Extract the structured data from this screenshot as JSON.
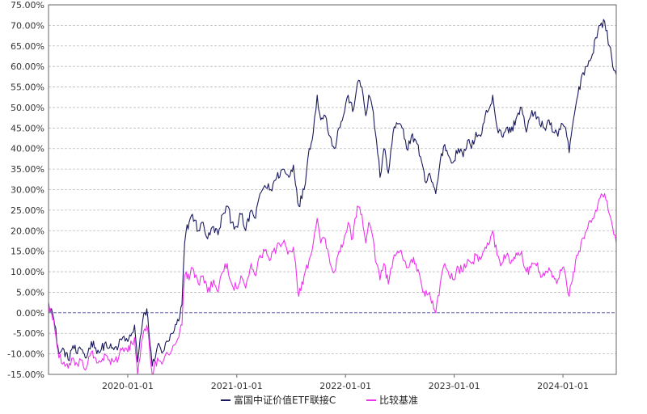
{
  "chart_data": {
    "type": "line",
    "title": "",
    "xlabel": "",
    "ylabel": "",
    "ylim": [
      -15,
      75
    ],
    "xlim": [
      "2019-04-10",
      "2024-06-28"
    ],
    "yticks": [
      -15,
      -10,
      -5,
      0,
      5,
      10,
      15,
      20,
      25,
      30,
      35,
      40,
      45,
      50,
      55,
      60,
      65,
      70,
      75
    ],
    "ytick_labels": [
      "-15.00%",
      "-10.00%",
      "-5.00%",
      "0.00%",
      "5.00%",
      "10.00%",
      "15.00%",
      "20.00%",
      "25.00%",
      "30.00%",
      "35.00%",
      "40.00%",
      "45.00%",
      "50.00%",
      "55.00%",
      "60.00%",
      "65.00%",
      "70.00%",
      "75.00%"
    ],
    "xticks": [
      "2020-01-01",
      "2021-01-01",
      "2022-01-01",
      "2023-01-01",
      "2024-01-01"
    ],
    "xtick_labels": [
      "2020-01-01",
      "2021-01-01",
      "2022-01-01",
      "2023-01-01",
      "2024-01-01"
    ],
    "grid": true,
    "legend_position": "bottom-center",
    "series": [
      {
        "name": "富国中证价值ETF联接C",
        "color": "#1a1a5e",
        "points": [
          [
            "2019-04-10",
            2.5
          ],
          [
            "2019-04-20",
            1.0
          ],
          [
            "2019-05-01",
            -3.0
          ],
          [
            "2019-05-15",
            -10.0
          ],
          [
            "2019-06-01",
            -9.0
          ],
          [
            "2019-06-15",
            -11.5
          ],
          [
            "2019-07-01",
            -8.0
          ],
          [
            "2019-07-15",
            -10.0
          ],
          [
            "2019-08-01",
            -9.0
          ],
          [
            "2019-08-15",
            -11.0
          ],
          [
            "2019-09-01",
            -7.0
          ],
          [
            "2019-09-15",
            -8.5
          ],
          [
            "2019-10-01",
            -9.5
          ],
          [
            "2019-10-15",
            -7.5
          ],
          [
            "2019-11-01",
            -8.5
          ],
          [
            "2019-11-15",
            -9.0
          ],
          [
            "2019-12-01",
            -8.0
          ],
          [
            "2019-12-15",
            -6.0
          ],
          [
            "2020-01-01",
            -7.0
          ],
          [
            "2020-01-15",
            -5.0
          ],
          [
            "2020-01-24",
            -3.0
          ],
          [
            "2020-02-03",
            -12.0
          ],
          [
            "2020-02-20",
            -2.0
          ],
          [
            "2020-03-05",
            1.0
          ],
          [
            "2020-03-23",
            -13.0
          ],
          [
            "2020-04-10",
            -8.0
          ],
          [
            "2020-04-28",
            -9.5
          ],
          [
            "2020-05-15",
            -7.0
          ],
          [
            "2020-06-01",
            -5.0
          ],
          [
            "2020-06-20",
            -2.0
          ],
          [
            "2020-07-01",
            2.0
          ],
          [
            "2020-07-06",
            11.0
          ],
          [
            "2020-07-10",
            17.0
          ],
          [
            "2020-07-15",
            20.0
          ],
          [
            "2020-07-25",
            22.0
          ],
          [
            "2020-08-05",
            24.0
          ],
          [
            "2020-08-25",
            20.0
          ],
          [
            "2020-09-10",
            22.0
          ],
          [
            "2020-09-25",
            18.0
          ],
          [
            "2020-10-15",
            21.0
          ],
          [
            "2020-10-30",
            19.0
          ],
          [
            "2020-11-15",
            24.0
          ],
          [
            "2020-11-30",
            26.0
          ],
          [
            "2020-12-15",
            22.0
          ],
          [
            "2020-12-31",
            21.0
          ],
          [
            "2021-01-15",
            24.0
          ],
          [
            "2021-01-31",
            20.0
          ],
          [
            "2021-02-18",
            25.0
          ],
          [
            "2021-03-05",
            23.0
          ],
          [
            "2021-03-20",
            29.0
          ],
          [
            "2021-04-05",
            31.0
          ],
          [
            "2021-04-25",
            30.0
          ],
          [
            "2021-05-15",
            33.0
          ],
          [
            "2021-06-05",
            35.0
          ],
          [
            "2021-06-25",
            33.0
          ],
          [
            "2021-07-10",
            36.0
          ],
          [
            "2021-07-28",
            26.0
          ],
          [
            "2021-08-15",
            30.0
          ],
          [
            "2021-09-01",
            40.0
          ],
          [
            "2021-09-15",
            44.0
          ],
          [
            "2021-09-28",
            53.0
          ],
          [
            "2021-10-10",
            47.0
          ],
          [
            "2021-10-25",
            48.0
          ],
          [
            "2021-11-10",
            43.0
          ],
          [
            "2021-11-25",
            40.0
          ],
          [
            "2021-12-10",
            45.0
          ],
          [
            "2021-12-25",
            48.0
          ],
          [
            "2022-01-10",
            53.0
          ],
          [
            "2022-01-25",
            49.0
          ],
          [
            "2022-02-10",
            56.0
          ],
          [
            "2022-02-25",
            55.0
          ],
          [
            "2022-03-10",
            48.0
          ],
          [
            "2022-03-20",
            53.0
          ],
          [
            "2022-04-01",
            50.0
          ],
          [
            "2022-04-15",
            42.0
          ],
          [
            "2022-04-27",
            33.0
          ],
          [
            "2022-05-10",
            40.0
          ],
          [
            "2022-05-25",
            34.0
          ],
          [
            "2022-06-10",
            44.0
          ],
          [
            "2022-06-25",
            46.0
          ],
          [
            "2022-07-10",
            45.0
          ],
          [
            "2022-07-25",
            40.0
          ],
          [
            "2022-08-10",
            43.0
          ],
          [
            "2022-08-25",
            42.0
          ],
          [
            "2022-09-10",
            38.0
          ],
          [
            "2022-09-25",
            32.0
          ],
          [
            "2022-10-10",
            34.0
          ],
          [
            "2022-10-31",
            29.0
          ],
          [
            "2022-11-15",
            37.0
          ],
          [
            "2022-11-30",
            41.0
          ],
          [
            "2022-12-15",
            38.0
          ],
          [
            "2022-12-31",
            37.0
          ],
          [
            "2023-01-15",
            40.0
          ],
          [
            "2023-01-31",
            38.0
          ],
          [
            "2023-02-15",
            42.0
          ],
          [
            "2023-02-28",
            40.0
          ],
          [
            "2023-03-15",
            44.0
          ],
          [
            "2023-03-31",
            43.0
          ],
          [
            "2023-04-15",
            48.0
          ],
          [
            "2023-04-30",
            50.0
          ],
          [
            "2023-05-10",
            53.0
          ],
          [
            "2023-05-25",
            45.0
          ],
          [
            "2023-06-10",
            43.0
          ],
          [
            "2023-06-25",
            45.0
          ],
          [
            "2023-07-10",
            44.0
          ],
          [
            "2023-07-31",
            48.0
          ],
          [
            "2023-08-15",
            50.0
          ],
          [
            "2023-08-31",
            44.0
          ],
          [
            "2023-09-15",
            48.0
          ],
          [
            "2023-09-30",
            49.0
          ],
          [
            "2023-10-15",
            46.0
          ],
          [
            "2023-10-31",
            45.0
          ],
          [
            "2023-11-15",
            47.0
          ],
          [
            "2023-11-30",
            44.0
          ],
          [
            "2023-12-15",
            43.0
          ],
          [
            "2023-12-31",
            46.0
          ],
          [
            "2024-01-10",
            45.0
          ],
          [
            "2024-01-22",
            39.0
          ],
          [
            "2024-02-05",
            47.0
          ],
          [
            "2024-02-20",
            53.0
          ],
          [
            "2024-03-05",
            58.0
          ],
          [
            "2024-03-20",
            60.0
          ],
          [
            "2024-04-05",
            62.0
          ],
          [
            "2024-04-20",
            67.0
          ],
          [
            "2024-05-05",
            70.0
          ],
          [
            "2024-05-20",
            71.0
          ],
          [
            "2024-06-05",
            65.0
          ],
          [
            "2024-06-20",
            59.0
          ],
          [
            "2024-06-28",
            58.0
          ]
        ]
      },
      {
        "name": "比较基准",
        "color": "#ee33ee",
        "points": [
          [
            "2019-04-10",
            2.0
          ],
          [
            "2019-04-20",
            0.0
          ],
          [
            "2019-05-01",
            -4.0
          ],
          [
            "2019-05-15",
            -11.0
          ],
          [
            "2019-06-01",
            -12.0
          ],
          [
            "2019-06-15",
            -13.5
          ],
          [
            "2019-07-01",
            -11.0
          ],
          [
            "2019-07-15",
            -12.5
          ],
          [
            "2019-08-01",
            -11.5
          ],
          [
            "2019-08-15",
            -13.5
          ],
          [
            "2019-09-01",
            -9.5
          ],
          [
            "2019-09-15",
            -11.0
          ],
          [
            "2019-10-01",
            -12.0
          ],
          [
            "2019-10-15",
            -10.0
          ],
          [
            "2019-11-01",
            -11.5
          ],
          [
            "2019-11-15",
            -12.0
          ],
          [
            "2019-12-01",
            -11.0
          ],
          [
            "2019-12-15",
            -8.5
          ],
          [
            "2020-01-01",
            -9.5
          ],
          [
            "2020-01-15",
            -7.5
          ],
          [
            "2020-01-24",
            -6.0
          ],
          [
            "2020-02-03",
            -15.0
          ],
          [
            "2020-02-20",
            -6.0
          ],
          [
            "2020-03-05",
            -3.0
          ],
          [
            "2020-03-23",
            -15.0
          ],
          [
            "2020-04-10",
            -11.0
          ],
          [
            "2020-04-28",
            -12.0
          ],
          [
            "2020-05-15",
            -10.0
          ],
          [
            "2020-06-01",
            -8.0
          ],
          [
            "2020-06-20",
            -6.0
          ],
          [
            "2020-07-01",
            -3.0
          ],
          [
            "2020-07-06",
            5.0
          ],
          [
            "2020-07-10",
            9.0
          ],
          [
            "2020-07-15",
            10.0
          ],
          [
            "2020-07-25",
            8.0
          ],
          [
            "2020-08-05",
            11.0
          ],
          [
            "2020-08-25",
            7.0
          ],
          [
            "2020-09-10",
            9.0
          ],
          [
            "2020-09-25",
            5.0
          ],
          [
            "2020-10-15",
            8.0
          ],
          [
            "2020-10-30",
            5.0
          ],
          [
            "2020-11-15",
            10.0
          ],
          [
            "2020-11-30",
            12.0
          ],
          [
            "2020-12-15",
            7.0
          ],
          [
            "2020-12-31",
            6.0
          ],
          [
            "2021-01-15",
            9.0
          ],
          [
            "2021-01-31",
            6.0
          ],
          [
            "2021-02-18",
            12.0
          ],
          [
            "2021-03-05",
            9.0
          ],
          [
            "2021-03-20",
            14.0
          ],
          [
            "2021-04-05",
            15.0
          ],
          [
            "2021-04-25",
            13.0
          ],
          [
            "2021-05-15",
            16.0
          ],
          [
            "2021-06-05",
            17.0
          ],
          [
            "2021-06-25",
            15.0
          ],
          [
            "2021-07-10",
            16.0
          ],
          [
            "2021-07-28",
            4.0
          ],
          [
            "2021-08-15",
            9.0
          ],
          [
            "2021-09-01",
            13.0
          ],
          [
            "2021-09-15",
            17.0
          ],
          [
            "2021-09-28",
            23.0
          ],
          [
            "2021-10-10",
            17.0
          ],
          [
            "2021-10-25",
            18.0
          ],
          [
            "2021-11-10",
            12.0
          ],
          [
            "2021-11-25",
            10.0
          ],
          [
            "2021-12-10",
            15.0
          ],
          [
            "2021-12-25",
            17.0
          ],
          [
            "2022-01-10",
            22.0
          ],
          [
            "2022-01-25",
            18.0
          ],
          [
            "2022-02-10",
            26.0
          ],
          [
            "2022-02-25",
            24.0
          ],
          [
            "2022-03-10",
            17.0
          ],
          [
            "2022-03-20",
            22.0
          ],
          [
            "2022-04-01",
            19.0
          ],
          [
            "2022-04-15",
            12.0
          ],
          [
            "2022-04-27",
            8.0
          ],
          [
            "2022-05-10",
            12.0
          ],
          [
            "2022-05-25",
            7.0
          ],
          [
            "2022-06-10",
            13.0
          ],
          [
            "2022-06-25",
            15.0
          ],
          [
            "2022-07-10",
            14.0
          ],
          [
            "2022-07-25",
            11.0
          ],
          [
            "2022-08-10",
            13.0
          ],
          [
            "2022-08-25",
            12.0
          ],
          [
            "2022-09-10",
            8.0
          ],
          [
            "2022-09-25",
            4.0
          ],
          [
            "2022-10-10",
            5.0
          ],
          [
            "2022-10-31",
            0.0
          ],
          [
            "2022-11-15",
            7.0
          ],
          [
            "2022-11-30",
            12.0
          ],
          [
            "2022-12-15",
            9.0
          ],
          [
            "2022-12-31",
            8.0
          ],
          [
            "2023-01-15",
            11.0
          ],
          [
            "2023-01-31",
            10.0
          ],
          [
            "2023-02-15",
            13.0
          ],
          [
            "2023-02-28",
            12.0
          ],
          [
            "2023-03-15",
            14.0
          ],
          [
            "2023-03-31",
            13.0
          ],
          [
            "2023-04-15",
            16.0
          ],
          [
            "2023-04-30",
            17.0
          ],
          [
            "2023-05-10",
            20.0
          ],
          [
            "2023-05-25",
            14.0
          ],
          [
            "2023-06-10",
            12.0
          ],
          [
            "2023-06-25",
            14.0
          ],
          [
            "2023-07-10",
            12.0
          ],
          [
            "2023-07-31",
            14.0
          ],
          [
            "2023-08-15",
            15.0
          ],
          [
            "2023-08-31",
            10.0
          ],
          [
            "2023-09-15",
            11.0
          ],
          [
            "2023-09-30",
            12.0
          ],
          [
            "2023-10-15",
            10.0
          ],
          [
            "2023-10-31",
            9.0
          ],
          [
            "2023-11-15",
            11.0
          ],
          [
            "2023-11-30",
            9.0
          ],
          [
            "2023-12-15",
            8.0
          ],
          [
            "2023-12-31",
            11.0
          ],
          [
            "2024-01-10",
            9.0
          ],
          [
            "2024-01-22",
            4.0
          ],
          [
            "2024-02-05",
            10.0
          ],
          [
            "2024-02-20",
            14.0
          ],
          [
            "2024-03-05",
            18.0
          ],
          [
            "2024-03-20",
            20.0
          ],
          [
            "2024-04-05",
            22.0
          ],
          [
            "2024-04-20",
            25.0
          ],
          [
            "2024-05-05",
            28.0
          ],
          [
            "2024-05-20",
            29.0
          ],
          [
            "2024-06-05",
            24.0
          ],
          [
            "2024-06-20",
            19.0
          ],
          [
            "2024-06-28",
            17.0
          ]
        ]
      }
    ]
  }
}
